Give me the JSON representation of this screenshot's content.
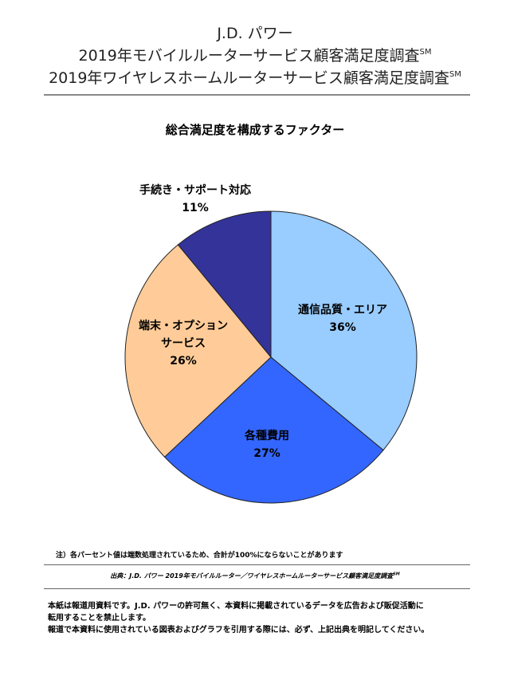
{
  "header": {
    "company": "J.D. パワー",
    "study_line1": "2019年モバイルルーターサービス顧客満足度調査",
    "study_line2": "2019年ワイヤレスホームルーターサービス顧客満足度調査",
    "sm_mark": "SM"
  },
  "chart_data": {
    "type": "pie",
    "title": "総合満足度を構成するファクター",
    "slices": [
      {
        "lines": [
          "通信品質・エリア"
        ],
        "value": 36,
        "value_label": "36%",
        "color": "#99ccff"
      },
      {
        "lines": [
          "各種費用"
        ],
        "value": 27,
        "value_label": "27%",
        "color": "#3366ff"
      },
      {
        "lines": [
          "端末・オプション",
          "サービス"
        ],
        "value": 26,
        "value_label": "26%",
        "color": "#ffcc99"
      },
      {
        "lines": [
          "手続き・サポート対応"
        ],
        "value": 11,
        "value_label": "11%",
        "color": "#333399"
      }
    ]
  },
  "footer": {
    "note": "注）各パーセント値は端数処理されているため、合計が100%にならないことがあります",
    "source": "出典：J.D. パワー 2019年モバイルルーター／ワイヤレスホームルーターサービス顧客満足度調査",
    "source_sm": "SM",
    "disclaimer_line1": "本紙は報道用資料です。J.D. パワーの許可無く、本資料に掲載されているデータを広告および販促活動に",
    "disclaimer_line2": "転用することを禁止します。",
    "disclaimer_line3": "報道で本資料に使用されている図表およびグラフを引用する際には、必ず、上記出典を明記してください。"
  }
}
